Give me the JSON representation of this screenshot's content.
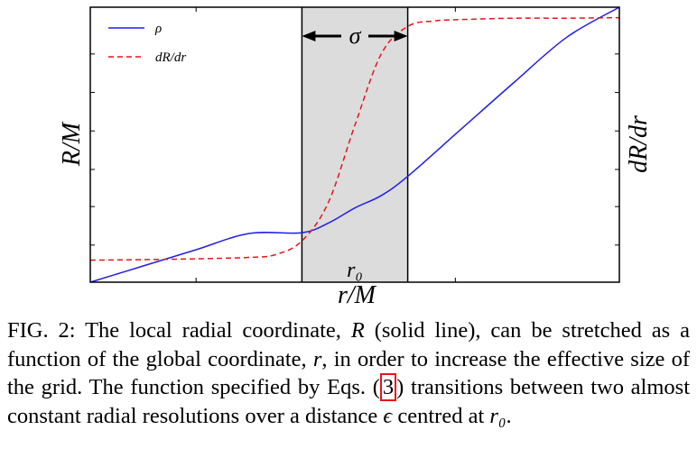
{
  "chart_data": {
    "type": "line",
    "xlabel": "r/M",
    "ylabel_left": "R/M",
    "ylabel_right": "dR/dr",
    "xlim": [
      0,
      10
    ],
    "ylim": [
      0,
      10
    ],
    "shaded_region": {
      "label": "σ",
      "center_label": "r₀",
      "x_range": [
        4,
        6
      ]
    },
    "legend_position": "top-left",
    "series": [
      {
        "name": "ρ",
        "style": "solid",
        "color": "#1f1fe6",
        "x": [
          0,
          1,
          2,
          3,
          4,
          4.5,
          5,
          5.5,
          6,
          7,
          8,
          9,
          10
        ],
        "y": [
          0,
          0.59,
          1.18,
          1.77,
          1.8,
          2.15,
          2.7,
          3.15,
          3.85,
          5.55,
          7.25,
          8.9,
          10
        ]
      },
      {
        "name": "dR/dr",
        "style": "dashed",
        "color": "#e8141b",
        "x": [
          0,
          1,
          2,
          3,
          3.5,
          4,
          4.5,
          5,
          5.5,
          6,
          6.5,
          7,
          8,
          9,
          10
        ],
        "y": [
          0.8,
          0.82,
          0.85,
          0.9,
          1.0,
          1.5,
          2.9,
          5.7,
          8.3,
          9.3,
          9.5,
          9.55,
          9.6,
          9.6,
          9.62
        ]
      }
    ]
  },
  "caption": {
    "prefix": "FIG. 2: The local radial coordinate, ",
    "sym_R": "R",
    "part2": " (solid line), can be stretched as a function of the global coordinate, ",
    "sym_r": "r",
    "part3": ", in order to increase the effective size of the grid. The function specified by Eqs. (",
    "eq_ref": "3",
    "part4": ") transitions between two almost constant radial resolutions over a distance ",
    "sym_eps": "ϵ",
    "part5": " centred at ",
    "sym_r0": "r₀",
    "suffix": "."
  }
}
